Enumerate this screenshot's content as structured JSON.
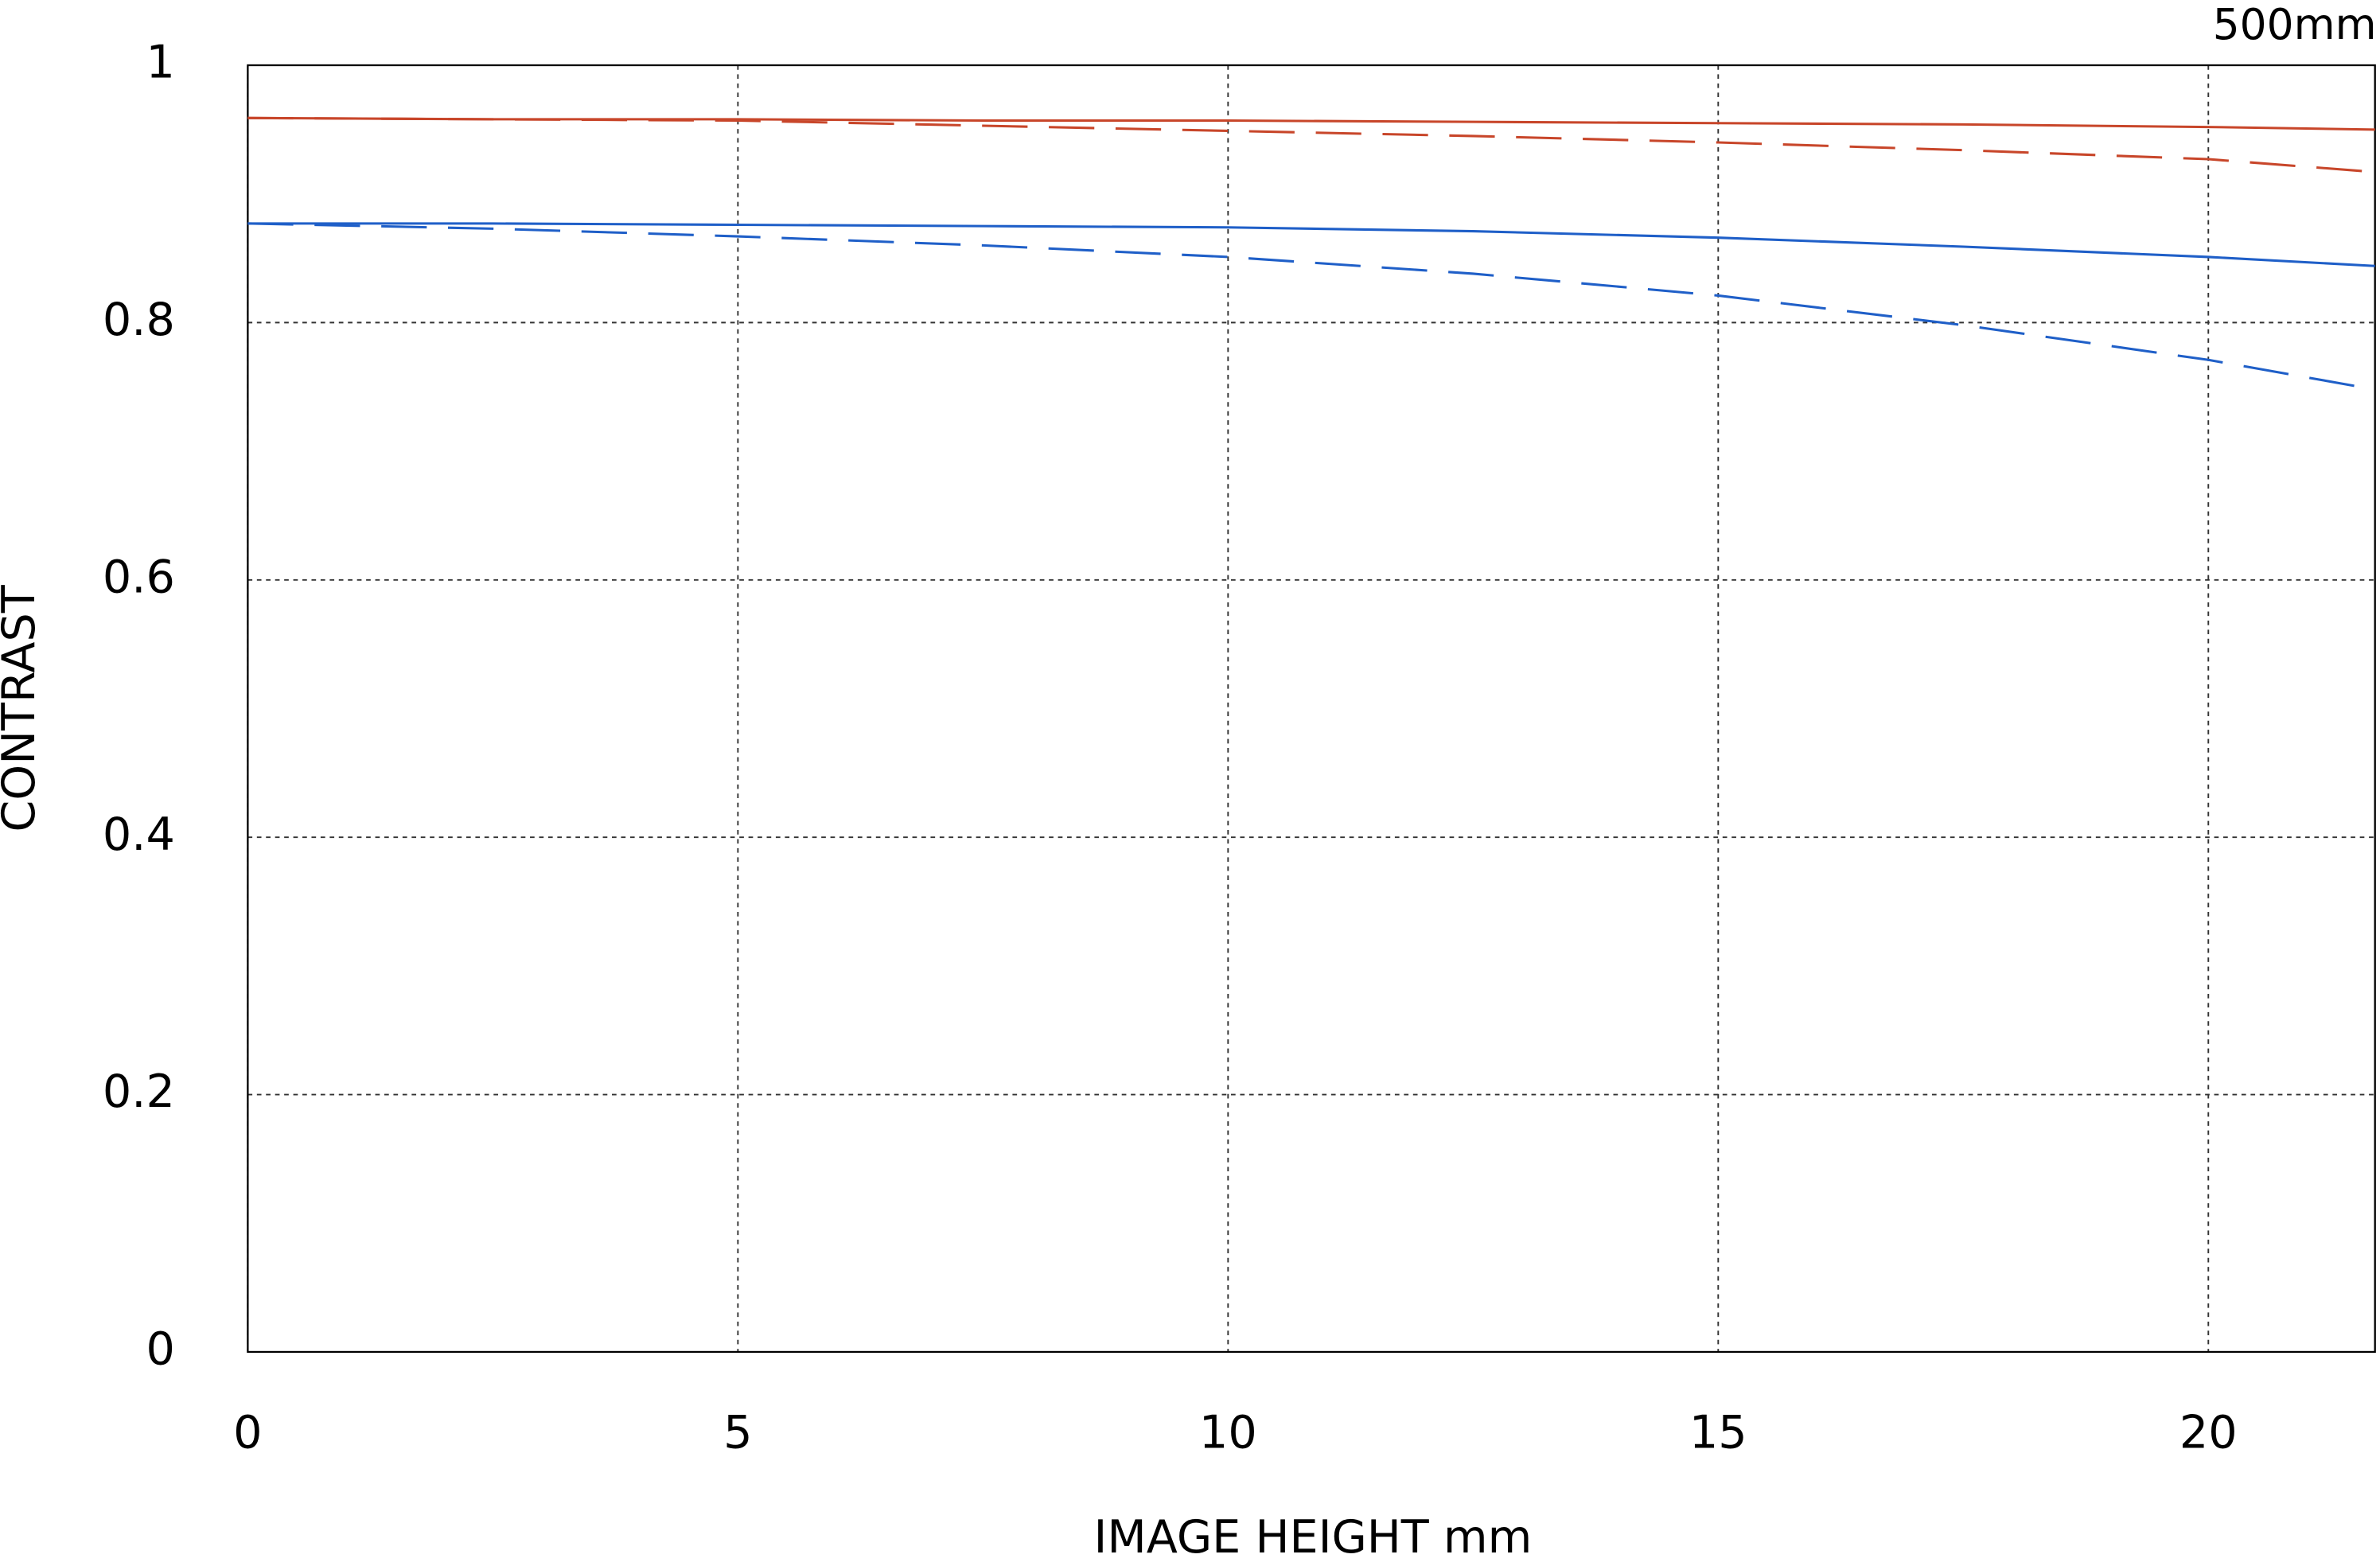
{
  "chart_data": {
    "type": "line",
    "title": "500mm",
    "x_label": "IMAGE HEIGHT  mm",
    "y_label": "CONTRAST",
    "x": [
      0,
      2.5,
      5,
      7.5,
      10,
      12.5,
      15,
      17.5,
      20,
      21.7
    ],
    "series": [
      {
        "color": "#c8462a",
        "style": "solid",
        "values": [
          0.959,
          0.958,
          0.958,
          0.957,
          0.957,
          0.956,
          0.955,
          0.954,
          0.952,
          0.95
        ]
      },
      {
        "color": "#c8462a",
        "style": "dashed",
        "values": [
          0.959,
          0.958,
          0.957,
          0.953,
          0.949,
          0.945,
          0.94,
          0.934,
          0.927,
          0.917
        ]
      },
      {
        "color": "#1f5fc8",
        "style": "solid",
        "values": [
          0.877,
          0.877,
          0.876,
          0.875,
          0.874,
          0.871,
          0.866,
          0.859,
          0.851,
          0.844
        ]
      },
      {
        "color": "#1f5fc8",
        "style": "dashed",
        "values": [
          0.877,
          0.873,
          0.867,
          0.86,
          0.851,
          0.838,
          0.821,
          0.798,
          0.771,
          0.748
        ]
      }
    ],
    "xlim": [
      0,
      21.7
    ],
    "ylim": [
      0,
      1
    ],
    "xticks": [
      0,
      5,
      10,
      15,
      20
    ],
    "yticks": [
      0,
      0.2,
      0.4,
      0.6,
      0.8,
      1
    ],
    "grid": true
  }
}
